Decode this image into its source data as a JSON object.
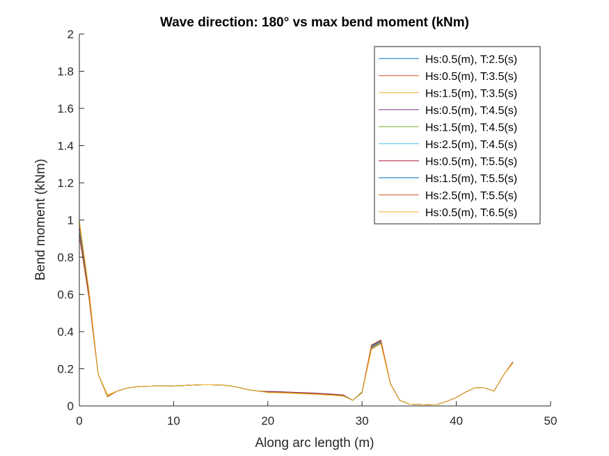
{
  "chart_data": {
    "type": "line",
    "title": "Wave direction: 180° vs max bend moment (kNm)",
    "xlabel": "Along arc length (m)",
    "ylabel": "Bend moment (kNm)",
    "xlim": [
      0,
      50
    ],
    "ylim": [
      0,
      2
    ],
    "xticks": [
      0,
      10,
      20,
      30,
      40,
      50
    ],
    "yticks": [
      0,
      0.2,
      0.4,
      0.6,
      0.8,
      1,
      1.2,
      1.4,
      1.6,
      1.8,
      2
    ],
    "xtick_labels": [
      "0",
      "10",
      "20",
      "30",
      "40",
      "50"
    ],
    "ytick_labels": [
      "0",
      "0.2",
      "0.4",
      "0.6",
      "0.8",
      "1",
      "1.2",
      "1.4",
      "1.6",
      "1.8",
      "2"
    ],
    "grid": false,
    "legend_position": "top-right",
    "x": [
      0,
      1,
      2,
      3,
      4,
      5,
      6,
      7,
      8,
      9,
      10,
      11,
      12,
      13,
      14,
      15,
      16,
      17,
      18,
      19,
      20,
      21,
      22,
      23,
      24,
      25,
      26,
      27,
      28,
      29,
      30,
      31,
      32,
      33,
      34,
      35,
      36,
      37,
      38,
      39,
      40,
      41,
      42,
      43,
      44,
      45,
      46
    ],
    "series": [
      {
        "name": "Hs:0.5(m), T:2.5(s)",
        "color": "#0072BD",
        "values": [
          0.97,
          0.62,
          0.17,
          0.05,
          0.08,
          0.095,
          0.103,
          0.106,
          0.107,
          0.107,
          0.108,
          0.11,
          0.112,
          0.114,
          0.114,
          0.113,
          0.108,
          0.098,
          0.087,
          0.08,
          0.077,
          0.076,
          0.074,
          0.072,
          0.07,
          0.068,
          0.065,
          0.062,
          0.058,
          0.03,
          0.075,
          0.31,
          0.34,
          0.12,
          0.03,
          0.01,
          0.008,
          0.007,
          0.008,
          0.025,
          0.045,
          0.075,
          0.098,
          0.097,
          0.08,
          0.165,
          0.235
        ]
      },
      {
        "name": "Hs:0.5(m), T:3.5(s)",
        "color": "#D95319",
        "values": [
          0.98,
          0.63,
          0.17,
          0.055,
          0.08,
          0.095,
          0.103,
          0.106,
          0.107,
          0.107,
          0.108,
          0.11,
          0.112,
          0.114,
          0.114,
          0.113,
          0.108,
          0.098,
          0.087,
          0.08,
          0.076,
          0.075,
          0.073,
          0.071,
          0.069,
          0.067,
          0.064,
          0.061,
          0.057,
          0.03,
          0.073,
          0.312,
          0.342,
          0.12,
          0.03,
          0.01,
          0.008,
          0.007,
          0.008,
          0.025,
          0.045,
          0.075,
          0.098,
          0.097,
          0.08,
          0.165,
          0.235
        ]
      },
      {
        "name": "Hs:1.5(m), T:3.5(s)",
        "color": "#EDB120",
        "values": [
          0.99,
          0.63,
          0.17,
          0.06,
          0.08,
          0.095,
          0.103,
          0.106,
          0.107,
          0.107,
          0.108,
          0.11,
          0.112,
          0.114,
          0.114,
          0.113,
          0.108,
          0.098,
          0.087,
          0.08,
          0.072,
          0.071,
          0.069,
          0.067,
          0.065,
          0.063,
          0.06,
          0.057,
          0.053,
          0.03,
          0.07,
          0.305,
          0.335,
          0.118,
          0.03,
          0.01,
          0.008,
          0.007,
          0.008,
          0.025,
          0.045,
          0.075,
          0.098,
          0.097,
          0.08,
          0.165,
          0.23
        ]
      },
      {
        "name": "Hs:0.5(m), T:4.5(s)",
        "color": "#7E2F8E",
        "values": [
          0.96,
          0.62,
          0.17,
          0.05,
          0.08,
          0.095,
          0.103,
          0.106,
          0.107,
          0.107,
          0.108,
          0.11,
          0.112,
          0.114,
          0.114,
          0.113,
          0.108,
          0.098,
          0.087,
          0.08,
          0.075,
          0.074,
          0.072,
          0.07,
          0.068,
          0.066,
          0.063,
          0.06,
          0.056,
          0.03,
          0.072,
          0.32,
          0.348,
          0.12,
          0.03,
          0.01,
          0.008,
          0.007,
          0.008,
          0.025,
          0.045,
          0.075,
          0.098,
          0.097,
          0.08,
          0.165,
          0.235
        ]
      },
      {
        "name": "Hs:1.5(m), T:4.5(s)",
        "color": "#77AC30",
        "values": [
          0.95,
          0.61,
          0.17,
          0.05,
          0.08,
          0.095,
          0.103,
          0.106,
          0.107,
          0.107,
          0.108,
          0.11,
          0.112,
          0.114,
          0.114,
          0.113,
          0.108,
          0.098,
          0.087,
          0.08,
          0.074,
          0.073,
          0.071,
          0.069,
          0.067,
          0.065,
          0.062,
          0.059,
          0.055,
          0.03,
          0.071,
          0.315,
          0.344,
          0.119,
          0.03,
          0.01,
          0.008,
          0.007,
          0.008,
          0.025,
          0.045,
          0.075,
          0.098,
          0.097,
          0.08,
          0.165,
          0.233
        ]
      },
      {
        "name": "Hs:2.5(m), T:4.5(s)",
        "color": "#4DBEEE",
        "values": [
          0.94,
          0.6,
          0.17,
          0.05,
          0.08,
          0.095,
          0.103,
          0.106,
          0.107,
          0.107,
          0.108,
          0.11,
          0.112,
          0.114,
          0.114,
          0.113,
          0.108,
          0.098,
          0.087,
          0.08,
          0.073,
          0.072,
          0.07,
          0.068,
          0.066,
          0.064,
          0.061,
          0.058,
          0.054,
          0.03,
          0.07,
          0.318,
          0.346,
          0.119,
          0.03,
          0.01,
          0.008,
          0.007,
          0.008,
          0.025,
          0.045,
          0.075,
          0.098,
          0.097,
          0.08,
          0.165,
          0.232
        ]
      },
      {
        "name": "Hs:0.5(m), T:5.5(s)",
        "color": "#A2142F",
        "values": [
          0.93,
          0.6,
          0.17,
          0.05,
          0.08,
          0.095,
          0.103,
          0.106,
          0.107,
          0.107,
          0.108,
          0.11,
          0.112,
          0.114,
          0.114,
          0.113,
          0.108,
          0.098,
          0.087,
          0.08,
          0.078,
          0.077,
          0.075,
          0.073,
          0.071,
          0.069,
          0.066,
          0.063,
          0.059,
          0.03,
          0.074,
          0.322,
          0.35,
          0.12,
          0.03,
          0.01,
          0.008,
          0.007,
          0.008,
          0.025,
          0.045,
          0.075,
          0.098,
          0.097,
          0.08,
          0.165,
          0.236
        ]
      },
      {
        "name": "Hs:1.5(m), T:5.5(s)",
        "color": "#0072BD",
        "values": [
          0.92,
          0.59,
          0.17,
          0.05,
          0.08,
          0.095,
          0.103,
          0.106,
          0.107,
          0.107,
          0.108,
          0.11,
          0.112,
          0.114,
          0.114,
          0.113,
          0.108,
          0.098,
          0.087,
          0.08,
          0.076,
          0.075,
          0.073,
          0.071,
          0.069,
          0.067,
          0.064,
          0.061,
          0.057,
          0.03,
          0.073,
          0.325,
          0.352,
          0.121,
          0.03,
          0.01,
          0.008,
          0.007,
          0.008,
          0.025,
          0.045,
          0.075,
          0.098,
          0.097,
          0.08,
          0.165,
          0.236
        ]
      },
      {
        "name": "Hs:2.5(m), T:5.5(s)",
        "color": "#D95319",
        "values": [
          0.91,
          0.59,
          0.17,
          0.05,
          0.08,
          0.095,
          0.103,
          0.106,
          0.107,
          0.107,
          0.108,
          0.11,
          0.112,
          0.114,
          0.114,
          0.113,
          0.108,
          0.098,
          0.087,
          0.08,
          0.075,
          0.074,
          0.072,
          0.07,
          0.068,
          0.066,
          0.063,
          0.06,
          0.056,
          0.03,
          0.072,
          0.328,
          0.355,
          0.121,
          0.03,
          0.01,
          0.008,
          0.007,
          0.008,
          0.025,
          0.045,
          0.075,
          0.098,
          0.097,
          0.08,
          0.165,
          0.237
        ]
      },
      {
        "name": "Hs:0.5(m), T:6.5(s)",
        "color": "#EDB120",
        "values": [
          1.0,
          0.63,
          0.17,
          0.055,
          0.08,
          0.095,
          0.103,
          0.106,
          0.107,
          0.107,
          0.108,
          0.11,
          0.112,
          0.114,
          0.114,
          0.113,
          0.108,
          0.098,
          0.087,
          0.08,
          0.072,
          0.071,
          0.069,
          0.067,
          0.065,
          0.063,
          0.06,
          0.057,
          0.053,
          0.03,
          0.07,
          0.305,
          0.335,
          0.118,
          0.03,
          0.01,
          0.008,
          0.007,
          0.008,
          0.025,
          0.045,
          0.075,
          0.098,
          0.097,
          0.08,
          0.165,
          0.23
        ]
      }
    ]
  }
}
